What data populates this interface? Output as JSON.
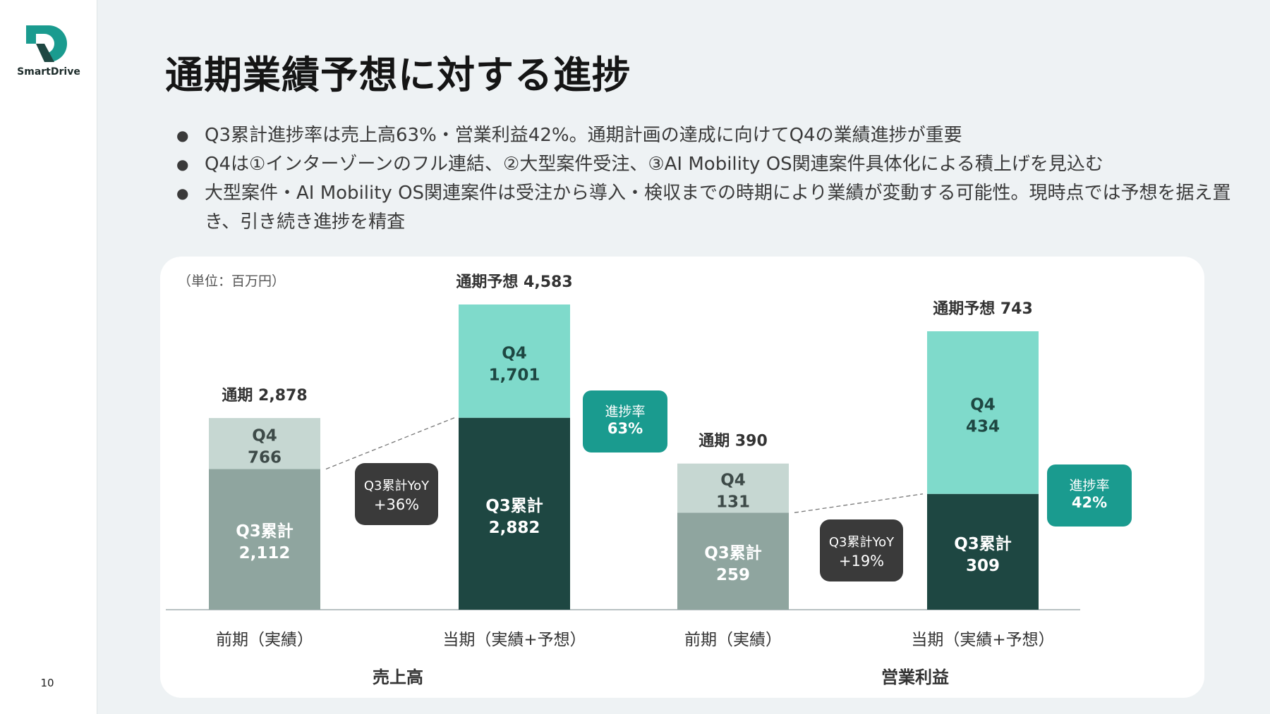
{
  "brand": {
    "name": "SmartDrive",
    "color": "#1a9b8f"
  },
  "page_number": "10",
  "title": "通期業績予想に対する進捗",
  "bullets": [
    "Q3累計進捗率は売上高63%・営業利益42%。通期計画の達成に向けてQ4の業績進捗が重要",
    "Q4は①インターゾーンのフル連結、②大型案件受注、③AI Mobility OS関連案件具体化による積上げを見込む",
    "大型案件・AI Mobility OS関連案件は受注から導入・検収までの時期により業績が変動する可能性。現時点では予想を据え置き、引き続き進捗を精査"
  ],
  "unit_label": "（単位：百万円）",
  "colors": {
    "prev_q3": "#8fa59f",
    "prev_q4": "#c6d7d2",
    "curr_q3": "#1e4742",
    "curr_q4": "#7fdacb",
    "progress_badge": "#1a9b8f",
    "yoy_badge": "#3a3a3a"
  },
  "chart_data": [
    {
      "type": "bar",
      "stacked": true,
      "xlabel": "売上高",
      "categories": [
        "前期（実績）",
        "当期（実績+予想）"
      ],
      "series": [
        {
          "name": "Q3累計",
          "values": [
            2112,
            2882
          ]
        },
        {
          "name": "Q4",
          "values": [
            766,
            1701
          ]
        }
      ],
      "totals": [
        2878,
        4583
      ],
      "total_labels": [
        "通期 2,878",
        "通期予想 4,583"
      ],
      "q3_labels": [
        "Q3累計",
        "2,112",
        "Q3累計",
        "2,882"
      ],
      "q4_labels": [
        "Q4",
        "766",
        "Q4",
        "1,701"
      ],
      "yoy": {
        "label": "Q3累計YoY",
        "value": "+36%"
      },
      "progress": {
        "label": "進捗率",
        "value": "63%"
      }
    },
    {
      "type": "bar",
      "stacked": true,
      "xlabel": "営業利益",
      "categories": [
        "前期（実績）",
        "当期（実績+予想）"
      ],
      "series": [
        {
          "name": "Q3累計",
          "values": [
            259,
            309
          ]
        },
        {
          "name": "Q4",
          "values": [
            131,
            434
          ]
        }
      ],
      "totals": [
        390,
        743
      ],
      "total_labels": [
        "通期 390",
        "通期予想 743"
      ],
      "q3_labels": [
        "Q3累計",
        "259",
        "Q3累計",
        "309"
      ],
      "q4_labels": [
        "Q4",
        "131",
        "Q4",
        "434"
      ],
      "yoy": {
        "label": "Q3累計YoY",
        "value": "+19%"
      },
      "progress": {
        "label": "進捗率",
        "value": "42%"
      }
    }
  ]
}
